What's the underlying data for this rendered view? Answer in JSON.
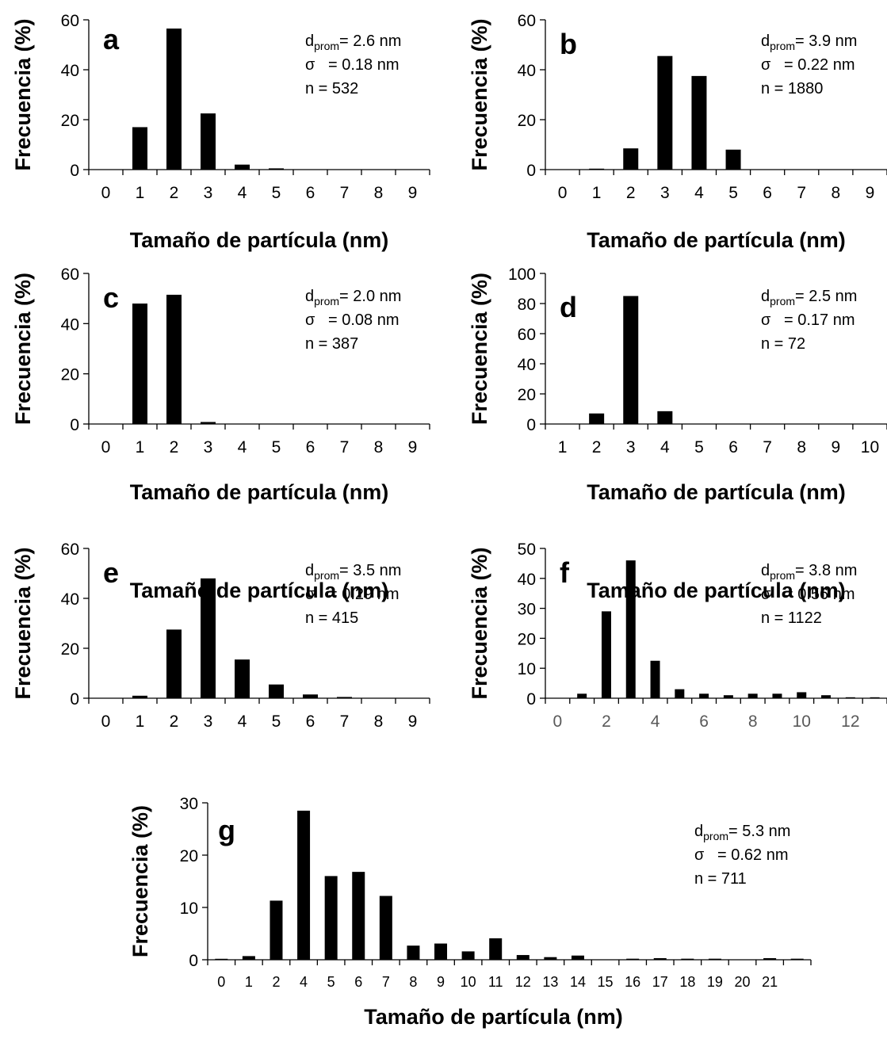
{
  "colors": {
    "bar": "#000000",
    "axis": "#000000",
    "background": "#ffffff",
    "tick_text_gray": "#595959"
  },
  "chart_data": [
    {
      "type": "bar",
      "panel": "a",
      "xlabel": "Tamaño de partícula (nm)",
      "ylabel": "Frecuencia (%)",
      "ylim": [
        0,
        60
      ],
      "yticks": [
        "0",
        "20",
        "40",
        "60"
      ],
      "categories": [
        "0",
        "1",
        "2",
        "3",
        "4",
        "5",
        "6",
        "7",
        "8",
        "9"
      ],
      "values": [
        0,
        17,
        56.5,
        22.5,
        2,
        0.5,
        0,
        0,
        0,
        0
      ],
      "stats": {
        "d_main": "d",
        "d_sub": "prom",
        "d_value": "= 2.6 nm",
        "sigma": "σ   = 0.18 nm",
        "n": "n = 532"
      }
    },
    {
      "type": "bar",
      "panel": "b",
      "xlabel": "Tamaño de partícula (nm)",
      "ylabel": "Frecuencia (%)",
      "ylim": [
        0,
        60
      ],
      "yticks": [
        "0",
        "20",
        "40",
        "60"
      ],
      "categories": [
        "0",
        "1",
        "2",
        "3",
        "4",
        "5",
        "6",
        "7",
        "8",
        "9"
      ],
      "values": [
        0,
        0.3,
        8.5,
        45.5,
        37.5,
        8,
        0,
        0,
        0,
        0
      ],
      "stats": {
        "d_main": "d",
        "d_sub": "prom",
        "d_value": "= 3.9 nm",
        "sigma": "σ   = 0.22 nm",
        "n": "n = 1880"
      }
    },
    {
      "type": "bar",
      "panel": "c",
      "xlabel": "Tamaño de partícula (nm)",
      "ylabel": "Frecuencia (%)",
      "ylim": [
        0,
        60
      ],
      "yticks": [
        "0",
        "20",
        "40",
        "60"
      ],
      "categories": [
        "0",
        "1",
        "2",
        "3",
        "4",
        "5",
        "6",
        "7",
        "8",
        "9"
      ],
      "values": [
        0,
        48,
        51.5,
        0.8,
        0,
        0,
        0,
        0,
        0,
        0
      ],
      "stats": {
        "d_main": "d",
        "d_sub": "prom",
        "d_value": "= 2.0 nm",
        "sigma": "σ   = 0.08 nm",
        "n": "n = 387"
      }
    },
    {
      "type": "bar",
      "panel": "d",
      "xlabel": "Tamaño de partícula (nm)",
      "ylabel": "Frecuencia (%)",
      "ylim": [
        0,
        100
      ],
      "yticks": [
        "0",
        "20",
        "40",
        "60",
        "80",
        "100"
      ],
      "categories": [
        "1",
        "2",
        "3",
        "4",
        "5",
        "6",
        "7",
        "8",
        "9",
        "10"
      ],
      "values": [
        0,
        7,
        85,
        8.5,
        0,
        0,
        0,
        0,
        0,
        0
      ],
      "stats": {
        "d_main": "d",
        "d_sub": "prom",
        "d_value": "= 2.5 nm",
        "sigma": "σ   = 0.17 nm",
        "n": "n = 72"
      }
    },
    {
      "type": "bar",
      "panel": "e",
      "xlabel": "Tamaño de partícula (nm)",
      "ylabel": "Frecuencia (%)",
      "ylim": [
        0,
        60
      ],
      "yticks": [
        "0",
        "20",
        "40",
        "60"
      ],
      "categories": [
        "0",
        "1",
        "2",
        "3",
        "4",
        "5",
        "6",
        "7",
        "8",
        "9"
      ],
      "values": [
        0,
        1,
        27.5,
        48,
        15.5,
        5.5,
        1.5,
        0.5,
        0,
        0
      ],
      "stats": {
        "d_main": "d",
        "d_sub": "prom",
        "d_value": "= 3.5 nm",
        "sigma": "σ   = 0.29 nm",
        "n": "n = 415"
      }
    },
    {
      "type": "bar",
      "panel": "f",
      "xlabel": "Tamaño de partícula (nm)",
      "ylabel": "Frecuencia (%)",
      "ylim": [
        0,
        50
      ],
      "yticks": [
        "0",
        "10",
        "20",
        "30",
        "40",
        "50"
      ],
      "x": [
        0,
        1,
        2,
        3,
        4,
        5,
        6,
        7,
        8,
        9,
        10,
        11,
        12,
        13
      ],
      "xticks": [
        "0",
        "2",
        "4",
        "6",
        "8",
        "10",
        "12"
      ],
      "values": [
        0,
        1.5,
        29,
        46,
        12.5,
        3,
        1.5,
        1,
        1.5,
        1.5,
        2,
        1,
        0.3,
        0.3
      ],
      "stats": {
        "d_main": "d",
        "d_sub": "prom",
        "d_value": "= 3.8 nm",
        "sigma": "σ   = 0.56 nm",
        "n": "n = 1122"
      }
    },
    {
      "type": "bar",
      "panel": "g",
      "xlabel": "Tamaño de partícula (nm)",
      "ylabel": "Frecuencia (%)",
      "ylim": [
        0,
        30
      ],
      "yticks": [
        "0",
        "10",
        "20",
        "30"
      ],
      "categories": [
        "0",
        "1",
        "2",
        "4",
        "5",
        "6",
        "7",
        "8",
        "9",
        "10",
        "11",
        "12",
        "13",
        "14",
        "15",
        "16",
        "17",
        "18",
        "19",
        "20",
        "21",
        ""
      ],
      "values": [
        0.1,
        0.7,
        11.3,
        28.5,
        16,
        16.8,
        12.2,
        2.7,
        3.1,
        1.6,
        4.1,
        0.9,
        0.5,
        0.8,
        0,
        0.2,
        0.3,
        0.2,
        0.2,
        0,
        0.3,
        0.2
      ],
      "stats": {
        "d_main": "d",
        "d_sub": "prom",
        "d_value": "= 5.3 nm",
        "sigma": "σ   = 0.62 nm",
        "n": "n = 711"
      }
    }
  ]
}
